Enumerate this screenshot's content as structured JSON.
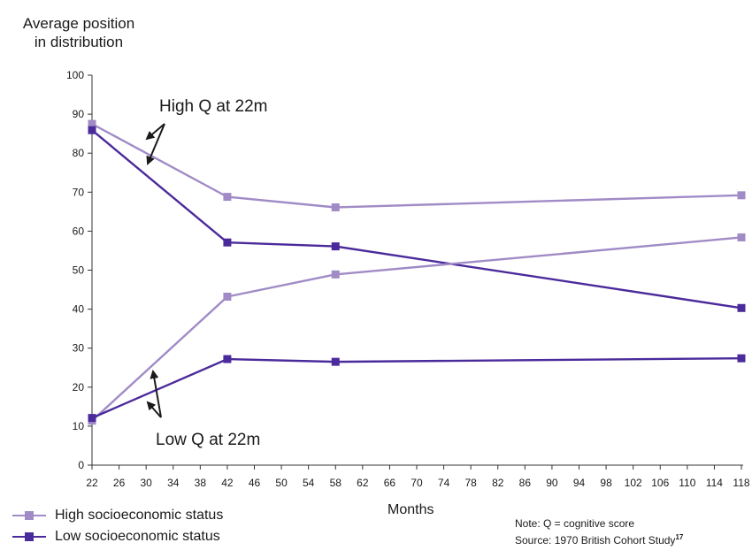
{
  "chart_data": {
    "type": "line",
    "title": "",
    "ylabel_lines": [
      "Average position",
      "in distribution"
    ],
    "xlabel": "Months",
    "ylim": [
      0,
      100
    ],
    "yticks": [
      0,
      10,
      20,
      30,
      40,
      50,
      60,
      70,
      80,
      90,
      100
    ],
    "xlim": [
      22,
      118
    ],
    "xticks": [
      22,
      26,
      30,
      34,
      38,
      42,
      46,
      50,
      54,
      58,
      62,
      66,
      70,
      74,
      78,
      82,
      86,
      90,
      94,
      98,
      102,
      106,
      110,
      114,
      118
    ],
    "grid": false,
    "legend_position": "bottom-left",
    "series": [
      {
        "group": "High socioeconomic status",
        "name": "",
        "color": "#a08bc6",
        "x": [
          22,
          42,
          58,
          118
        ],
        "y": [
          87.5,
          68.8,
          66.1,
          69.2
        ]
      },
      {
        "group": "Low socioeconomic status",
        "name": "",
        "color": "#4b2a9b",
        "x": [
          22,
          42,
          58,
          118
        ],
        "y": [
          85.9,
          57.1,
          56.1,
          40.3
        ]
      },
      {
        "group": "High socioeconomic status",
        "name": "",
        "color": "#a08bc6",
        "x": [
          22,
          42,
          58,
          118
        ],
        "y": [
          11.4,
          43.2,
          48.9,
          58.4
        ]
      },
      {
        "group": "Low socioeconomic status",
        "name": "",
        "color": "#4b2a9b",
        "x": [
          22,
          42,
          58,
          118
        ],
        "y": [
          12.1,
          27.2,
          26.5,
          27.4
        ]
      }
    ],
    "legend": [
      {
        "label": "High socioeconomic status",
        "color": "#a08bc6"
      },
      {
        "label": "Low socioeconomic status",
        "color": "#4b2a9b"
      }
    ],
    "annotations": [
      {
        "text": "High Q at 22m"
      },
      {
        "text": "Low Q at 22m"
      }
    ],
    "note": "Note: Q = cognitive score",
    "source": "Source: 1970 British Cohort Study",
    "source_ref": "17"
  }
}
